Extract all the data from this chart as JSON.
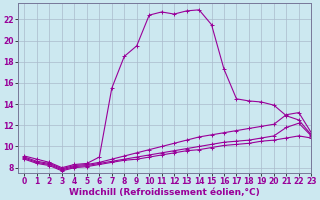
{
  "xlabel": "Windchill (Refroidissement éolien,°C)",
  "background_color": "#cce8f0",
  "grid_color": "#aabbcc",
  "line_color": "#990099",
  "xlim": [
    -0.5,
    23
  ],
  "ylim": [
    7.5,
    23.5
  ],
  "xticks": [
    0,
    1,
    2,
    3,
    4,
    5,
    6,
    7,
    8,
    9,
    10,
    11,
    12,
    13,
    14,
    15,
    16,
    17,
    18,
    19,
    20,
    21,
    22,
    23
  ],
  "yticks": [
    8,
    10,
    12,
    14,
    16,
    18,
    20,
    22
  ],
  "lines": [
    {
      "x": [
        0,
        1,
        2,
        3,
        4,
        5,
        6,
        7,
        8,
        9,
        10,
        11,
        12,
        13,
        14,
        15,
        16,
        17,
        18,
        19,
        20,
        21,
        22,
        23
      ],
      "y": [
        9.1,
        8.8,
        8.5,
        8.0,
        8.3,
        8.4,
        9.0,
        15.5,
        18.5,
        19.5,
        22.4,
        22.7,
        22.5,
        22.8,
        22.9,
        21.5,
        17.3,
        14.5,
        14.3,
        14.2,
        13.9,
        12.9,
        12.5,
        11.1
      ]
    },
    {
      "x": [
        0,
        1,
        2,
        3,
        4,
        5,
        6,
        7,
        8,
        9,
        10,
        11,
        12,
        13,
        14,
        15,
        16,
        17,
        18,
        19,
        20,
        21,
        22,
        23
      ],
      "y": [
        9.0,
        8.6,
        8.4,
        7.9,
        8.2,
        8.3,
        8.5,
        8.8,
        9.1,
        9.4,
        9.7,
        10.0,
        10.3,
        10.6,
        10.9,
        11.1,
        11.3,
        11.5,
        11.7,
        11.9,
        12.1,
        13.0,
        13.2,
        11.3
      ]
    },
    {
      "x": [
        0,
        1,
        2,
        3,
        4,
        5,
        6,
        7,
        8,
        9,
        10,
        11,
        12,
        13,
        14,
        15,
        16,
        17,
        18,
        19,
        20,
        21,
        22,
        23
      ],
      "y": [
        8.9,
        8.5,
        8.3,
        7.8,
        8.1,
        8.2,
        8.4,
        8.6,
        8.8,
        9.0,
        9.2,
        9.4,
        9.6,
        9.8,
        10.0,
        10.2,
        10.4,
        10.5,
        10.6,
        10.8,
        11.0,
        11.8,
        12.2,
        11.0
      ]
    },
    {
      "x": [
        0,
        1,
        2,
        3,
        4,
        5,
        6,
        7,
        8,
        9,
        10,
        11,
        12,
        13,
        14,
        15,
        16,
        17,
        18,
        19,
        20,
        21,
        22,
        23
      ],
      "y": [
        8.8,
        8.4,
        8.2,
        7.7,
        8.0,
        8.1,
        8.3,
        8.5,
        8.7,
        8.8,
        9.0,
        9.2,
        9.4,
        9.6,
        9.7,
        9.9,
        10.1,
        10.2,
        10.3,
        10.5,
        10.6,
        10.8,
        11.0,
        10.8
      ]
    }
  ],
  "tick_fontsize": 5.5,
  "label_fontsize": 6.5
}
